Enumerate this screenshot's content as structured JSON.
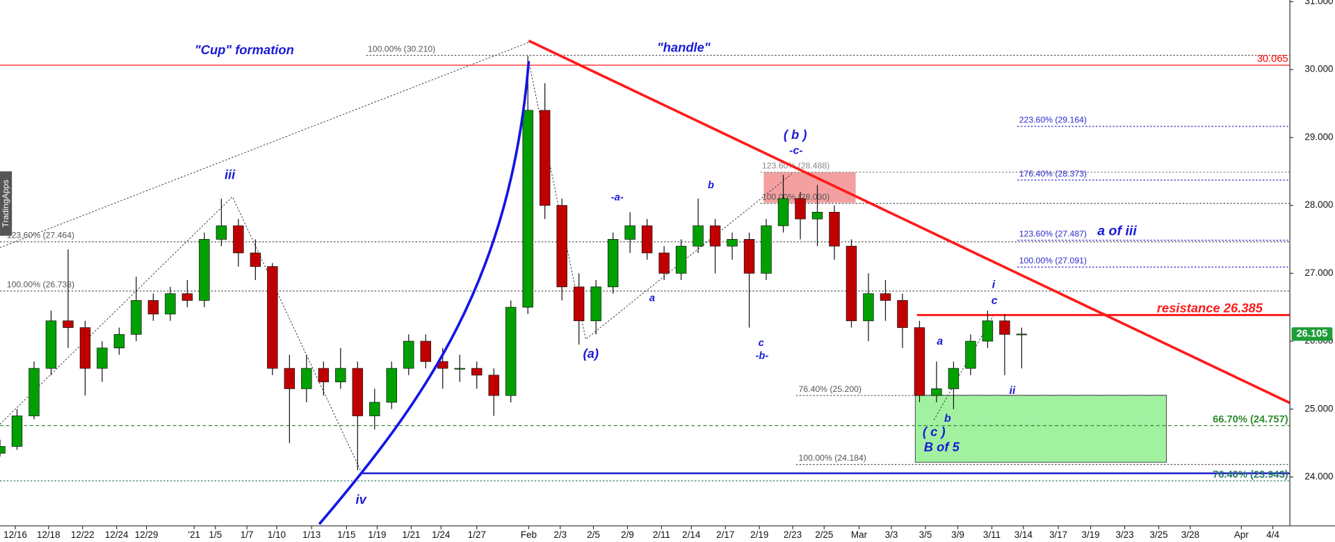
{
  "chart_data": {
    "type": "candlestick",
    "x": [
      0,
      5,
      10,
      15,
      20,
      25,
      30,
      35,
      40,
      45,
      50,
      55,
      60,
      65,
      70,
      75,
      80,
      85,
      90,
      95,
      100,
      105,
      110,
      115,
      120,
      125,
      130,
      135,
      140,
      145,
      150,
      155,
      160,
      165,
      170,
      175,
      180,
      185,
      190,
      195,
      200,
      205,
      210,
      215,
      220,
      225,
      230,
      235,
      240,
      245,
      250,
      255,
      260,
      265,
      270,
      275,
      280,
      285,
      290,
      295,
      300
    ],
    "open": [
      24.35,
      24.45,
      24.9,
      25.6,
      26.3,
      26.2,
      25.6,
      25.9,
      26.1,
      26.6,
      26.4,
      26.7,
      26.6,
      27.5,
      27.7,
      27.3,
      27.1,
      25.6,
      25.3,
      25.6,
      25.4,
      25.6,
      24.9,
      25.1,
      25.6,
      26.0,
      25.7,
      25.6,
      25.6,
      25.5,
      25.2,
      26.5,
      29.4,
      28.0,
      26.8,
      26.3,
      26.8,
      27.5,
      27.7,
      27.3,
      27.0,
      27.4,
      27.7,
      27.4,
      27.5,
      27.0,
      27.7,
      28.1,
      27.8,
      27.9,
      27.4,
      26.3,
      26.7,
      26.6,
      26.2,
      25.2,
      25.3,
      25.6,
      26.0,
      26.3,
      26.1
    ],
    "high": [
      24.55,
      25.0,
      25.7,
      26.45,
      27.35,
      26.3,
      26.0,
      26.2,
      26.95,
      26.7,
      26.8,
      26.9,
      27.6,
      28.1,
      27.8,
      27.5,
      27.15,
      25.8,
      25.8,
      25.7,
      25.9,
      25.7,
      25.3,
      25.7,
      26.1,
      26.1,
      25.9,
      25.8,
      25.7,
      25.6,
      26.6,
      30.2,
      29.8,
      28.1,
      27.0,
      26.9,
      27.6,
      27.9,
      27.8,
      27.4,
      27.5,
      28.1,
      27.8,
      27.6,
      27.6,
      27.8,
      28.45,
      28.2,
      28.3,
      28.0,
      27.5,
      27.0,
      26.9,
      26.7,
      26.3,
      25.7,
      25.7,
      26.1,
      26.45,
      26.4,
      26.2
    ],
    "low": [
      24.3,
      24.4,
      24.85,
      25.5,
      25.9,
      25.2,
      25.4,
      25.8,
      26.0,
      26.3,
      26.3,
      26.5,
      26.5,
      27.4,
      27.1,
      26.9,
      25.5,
      24.5,
      25.1,
      25.2,
      25.3,
      24.1,
      24.7,
      25.0,
      25.5,
      25.6,
      25.3,
      25.4,
      25.3,
      24.9,
      25.1,
      26.4,
      27.8,
      26.6,
      25.95,
      26.1,
      26.7,
      27.3,
      27.2,
      26.9,
      26.9,
      27.3,
      27.0,
      27.2,
      26.2,
      26.9,
      27.6,
      27.5,
      27.4,
      27.2,
      26.2,
      26.0,
      26.3,
      25.9,
      25.1,
      25.1,
      25.0,
      25.5,
      25.9,
      25.5,
      25.6
    ],
    "close": [
      24.45,
      24.9,
      25.6,
      26.3,
      26.2,
      25.6,
      25.9,
      26.1,
      26.6,
      26.4,
      26.7,
      26.6,
      27.5,
      27.7,
      27.3,
      27.1,
      25.6,
      25.3,
      25.6,
      25.4,
      25.6,
      24.9,
      25.1,
      25.6,
      26.0,
      25.7,
      25.6,
      25.6,
      25.5,
      25.2,
      26.5,
      29.4,
      28.0,
      26.8,
      26.3,
      26.8,
      27.5,
      27.7,
      27.3,
      27.0,
      27.4,
      27.7,
      27.4,
      27.5,
      27.0,
      27.7,
      28.1,
      27.8,
      27.9,
      27.4,
      26.3,
      26.7,
      26.6,
      26.2,
      25.2,
      25.3,
      25.6,
      26.0,
      26.3,
      26.1,
      26.105
    ],
    "up_color": "#00a000",
    "down_color": "#c00000",
    "xlim": [
      0,
      378.75
    ],
    "xticks": [
      {
        "value": 4.5,
        "label": "12/16"
      },
      {
        "value": 14.25,
        "label": "12/18"
      },
      {
        "value": 24.25,
        "label": "12/22"
      },
      {
        "value": 34.25,
        "label": "12/24"
      },
      {
        "value": 43,
        "label": "12/29"
      },
      {
        "value": 57,
        "label": "'21"
      },
      {
        "value": 63.25,
        "label": "1/5"
      },
      {
        "value": 72.5,
        "label": "1/7"
      },
      {
        "value": 81.25,
        "label": "1/10"
      },
      {
        "value": 91.5,
        "label": "1/13"
      },
      {
        "value": 101.75,
        "label": "1/15"
      },
      {
        "value": 110.75,
        "label": "1/19"
      },
      {
        "value": 120.75,
        "label": "1/21"
      },
      {
        "value": 129.5,
        "label": "1/24"
      },
      {
        "value": 140,
        "label": "1/27"
      },
      {
        "value": 155.25,
        "label": "Feb"
      },
      {
        "value": 164.5,
        "label": "2/3"
      },
      {
        "value": 174.25,
        "label": "2/5"
      },
      {
        "value": 184.25,
        "label": "2/9"
      },
      {
        "value": 194.25,
        "label": "2/11"
      },
      {
        "value": 203,
        "label": "2/14"
      },
      {
        "value": 213,
        "label": "2/17"
      },
      {
        "value": 223,
        "label": "2/19"
      },
      {
        "value": 232.75,
        "label": "2/23"
      },
      {
        "value": 242,
        "label": "2/25"
      },
      {
        "value": 252.25,
        "label": "Mar"
      },
      {
        "value": 261.75,
        "label": "3/3"
      },
      {
        "value": 271.75,
        "label": "3/5"
      },
      {
        "value": 281.25,
        "label": "3/9"
      },
      {
        "value": 291.25,
        "label": "3/11"
      },
      {
        "value": 300.5,
        "label": "3/14"
      },
      {
        "value": 310.75,
        "label": "3/17"
      },
      {
        "value": 320.25,
        "label": "3/19"
      },
      {
        "value": 330.25,
        "label": "3/23"
      },
      {
        "value": 340.25,
        "label": "3/25"
      },
      {
        "value": 349.5,
        "label": "3/28"
      },
      {
        "value": 364.5,
        "label": "Apr"
      },
      {
        "value": 373.75,
        "label": "4/4"
      }
    ],
    "ylim": [
      23.28,
      31.025
    ],
    "yticks": [
      {
        "value": 24,
        "label": "24.000"
      },
      {
        "value": 25,
        "label": "25.000"
      },
      {
        "value": 26,
        "label": "26.000"
      },
      {
        "value": 27,
        "label": "27.000"
      },
      {
        "value": 28,
        "label": "28.000"
      },
      {
        "value": 29,
        "label": "29.000"
      },
      {
        "value": 30,
        "label": "30.000"
      },
      {
        "value": 31,
        "label": "31.000"
      }
    ],
    "last_price": 26.105,
    "last_price_color": "#1f9d3a",
    "levels": [
      {
        "value": 30.21,
        "label": "100.00% (30.210)",
        "color": "#555555",
        "style": "dotted"
      },
      {
        "value": 30.065,
        "label": "30.065",
        "color": "#ff0000",
        "style": "solid"
      },
      {
        "value": 29.164,
        "label": "223.60% (29.164)",
        "color": "#2a2acc",
        "style": "dotted"
      },
      {
        "value": 28.488,
        "label": "123.60% (28.488)",
        "color": "#888888",
        "style": "dotted"
      },
      {
        "value": 28.373,
        "label": "176.40% (28.373)",
        "color": "#2a2acc",
        "style": "dotted"
      },
      {
        "value": 28.03,
        "label": "100.00% (28.030)",
        "color": "#555555",
        "style": "dotted"
      },
      {
        "value": 27.487,
        "label": "123.60% (27.487)",
        "color": "#2a2acc",
        "style": "dotted"
      },
      {
        "value": 27.464,
        "label": "123.60% (27.464)",
        "color": "#555555",
        "style": "dotted"
      },
      {
        "value": 27.091,
        "label": "100.00% (27.091)",
        "color": "#2a2acc",
        "style": "dotted"
      },
      {
        "value": 26.738,
        "label": "100.00% (26.738)",
        "color": "#555555",
        "style": "dotted"
      },
      {
        "value": 26.385,
        "label": "resistance 26.385",
        "color": "#ff1a1a",
        "style": "solid"
      },
      {
        "value": 25.2,
        "label": "76.40% (25.200)",
        "color": "#555555",
        "style": "dotted"
      },
      {
        "value": 24.757,
        "label": "66.70% (24.757)",
        "color": "#2e8b2e",
        "style": "dashed"
      },
      {
        "value": 24.184,
        "label": "100.00% (24.184)",
        "color": "#555555",
        "style": "dotted"
      },
      {
        "value": 23.943,
        "label": "76.40% (23.943)",
        "color": "#2a7a6a",
        "style": "dotted"
      }
    ],
    "annotations": [
      "\"Cup\" formation",
      "\"handle\"",
      "iii",
      "iv",
      "(a)",
      "-a-",
      "a",
      "b",
      "c",
      "-b-",
      "( b )",
      "-c-",
      "a of iii",
      "a",
      "b",
      "( c )",
      "B of 5",
      "i",
      "c",
      "ii",
      "TradingApps"
    ]
  }
}
